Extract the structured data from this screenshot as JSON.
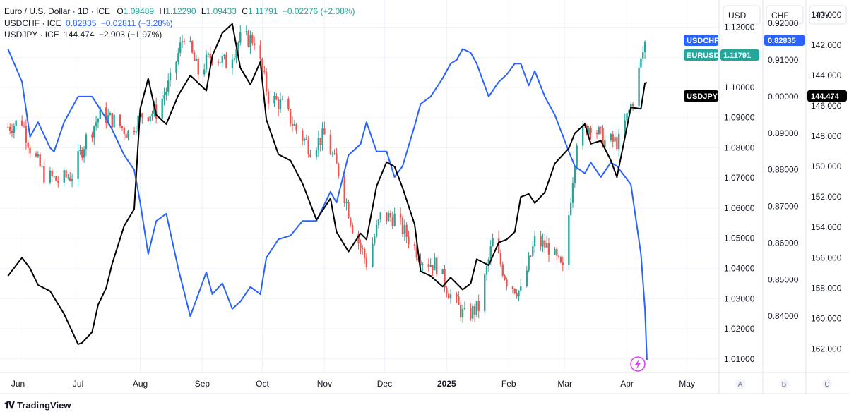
{
  "legend": {
    "eurusd": {
      "name": "Euro / U.S. Dollar · 1D · ICE",
      "o_label": "O",
      "o": "1.09489",
      "h_label": "H",
      "h": "1.12290",
      "l_label": "L",
      "l": "1.09433",
      "c_label": "C",
      "c": "1.11791",
      "chg": "+0.02276 (+2.08%)"
    },
    "usdchf": {
      "name": "USDCHF · ICE",
      "last": "0.82835",
      "chg": "−0.02811 (−3.28%)"
    },
    "usdjpy": {
      "name": "USDJPY · ICE",
      "last": "144.474",
      "chg": "−2.903 (−1.97%)"
    }
  },
  "axes": {
    "usd": {
      "header": "USD",
      "ticks": [
        "1.12000",
        "1.11000",
        "1.10000",
        "1.09000",
        "1.08000",
        "1.07000",
        "1.06000",
        "1.05000",
        "1.04000",
        "1.03000",
        "1.02000",
        "1.01000"
      ],
      "footer": "A"
    },
    "chf": {
      "header": "CHF",
      "ticks": [
        "0.84000",
        "0.85000",
        "0.86000",
        "0.87000",
        "0.88000",
        "0.89000",
        "0.90000",
        "0.91000",
        "0.92000"
      ],
      "footer": "B"
    },
    "jpy": {
      "header": "JPY",
      "ticks": [
        "140.000",
        "142.000",
        "144.000",
        "146.000",
        "148.000",
        "150.000",
        "152.000",
        "154.000",
        "156.000",
        "158.000",
        "160.000",
        "162.000"
      ],
      "footer": "C"
    }
  },
  "months": [
    "Jun",
    "Jul",
    "Aug",
    "Sep",
    "Oct",
    "Nov",
    "Dec",
    "2025",
    "Feb",
    "Mar",
    "Apr",
    "May"
  ],
  "price_labels": {
    "usdchf": {
      "name": "USDCHF",
      "value": "0.82835"
    },
    "eurusd": {
      "name": "EURUSD",
      "value": "1.11791"
    },
    "usdjpy": {
      "name": "USDJPY",
      "value": "144.474"
    }
  },
  "footer": {
    "brand": "TradingView"
  },
  "colors": {
    "up": "#26a69a",
    "down": "#ef5350",
    "usdchf": "#2962ff",
    "usdjpy": "#000000",
    "eurusd_label": "#26a69a",
    "grid": "#f0f3fa"
  },
  "chart_data": {
    "type": "line",
    "series": [
      {
        "name": "USDCHF",
        "scale": "CHF",
        "points": [
          [
            "2024-05-27",
            0.913
          ],
          [
            "2024-06-03",
            0.904
          ],
          [
            "2024-06-07",
            0.889
          ],
          [
            "2024-06-11",
            0.893
          ],
          [
            "2024-06-17",
            0.886
          ],
          [
            "2024-06-19",
            0.885
          ],
          [
            "2024-06-24",
            0.893
          ],
          [
            "2024-07-01",
            0.9
          ],
          [
            "2024-07-08",
            0.9
          ],
          [
            "2024-07-15",
            0.894
          ],
          [
            "2024-07-18",
            0.891
          ],
          [
            "2024-07-24",
            0.884
          ],
          [
            "2024-07-29",
            0.88
          ],
          [
            "2024-08-01",
            0.871
          ],
          [
            "2024-08-05",
            0.857
          ],
          [
            "2024-08-09",
            0.866
          ],
          [
            "2024-08-14",
            0.868
          ],
          [
            "2024-08-20",
            0.853
          ],
          [
            "2024-08-26",
            0.84
          ],
          [
            "2024-09-03",
            0.852
          ],
          [
            "2024-09-06",
            0.846
          ],
          [
            "2024-09-11",
            0.849
          ],
          [
            "2024-09-16",
            0.842
          ],
          [
            "2024-09-20",
            0.844
          ],
          [
            "2024-09-25",
            0.848
          ],
          [
            "2024-09-30",
            0.846
          ],
          [
            "2024-10-03",
            0.856
          ],
          [
            "2024-10-09",
            0.861
          ],
          [
            "2024-10-15",
            0.862
          ],
          [
            "2024-10-21",
            0.866
          ],
          [
            "2024-10-28",
            0.866
          ],
          [
            "2024-11-04",
            0.874
          ],
          [
            "2024-11-07",
            0.871
          ],
          [
            "2024-11-13",
            0.884
          ],
          [
            "2024-11-19",
            0.887
          ],
          [
            "2024-11-22",
            0.893
          ],
          [
            "2024-11-27",
            0.885
          ],
          [
            "2024-12-02",
            0.885
          ],
          [
            "2024-12-06",
            0.878
          ],
          [
            "2024-12-10",
            0.881
          ],
          [
            "2024-12-16",
            0.892
          ],
          [
            "2024-12-19",
            0.898
          ],
          [
            "2024-12-24",
            0.9
          ],
          [
            "2024-12-30",
            0.905
          ],
          [
            "2025-01-03",
            0.909
          ],
          [
            "2025-01-06",
            0.91
          ],
          [
            "2025-01-09",
            0.913
          ],
          [
            "2025-01-13",
            0.912
          ],
          [
            "2025-01-16",
            0.909
          ],
          [
            "2025-01-22",
            0.9
          ],
          [
            "2025-01-27",
            0.904
          ],
          [
            "2025-01-31",
            0.906
          ],
          [
            "2025-02-04",
            0.909
          ],
          [
            "2025-02-07",
            0.909
          ],
          [
            "2025-02-11",
            0.903
          ],
          [
            "2025-02-14",
            0.907
          ],
          [
            "2025-02-19",
            0.9
          ],
          [
            "2025-02-24",
            0.895
          ],
          [
            "2025-03-03",
            0.885
          ],
          [
            "2025-03-06",
            0.881
          ],
          [
            "2025-03-11",
            0.879
          ],
          [
            "2025-03-14",
            0.882
          ],
          [
            "2025-03-19",
            0.878
          ],
          [
            "2025-03-24",
            0.882
          ],
          [
            "2025-03-27",
            0.881
          ],
          [
            "2025-04-03",
            0.876
          ],
          [
            "2025-04-08",
            0.857
          ],
          [
            "2025-04-10",
            0.842
          ],
          [
            "2025-04-11",
            0.828
          ]
        ]
      },
      {
        "name": "USDJPY",
        "scale": "JPY",
        "points": [
          [
            "2024-05-27",
            157.2
          ],
          [
            "2024-06-03",
            156.0
          ],
          [
            "2024-06-07",
            156.7
          ],
          [
            "2024-06-11",
            157.8
          ],
          [
            "2024-06-17",
            158.2
          ],
          [
            "2024-06-24",
            159.7
          ],
          [
            "2024-07-01",
            161.7
          ],
          [
            "2024-07-03",
            161.6
          ],
          [
            "2024-07-08",
            160.9
          ],
          [
            "2024-07-11",
            159.1
          ],
          [
            "2024-07-15",
            158.0
          ],
          [
            "2024-07-18",
            156.4
          ],
          [
            "2024-07-24",
            153.9
          ],
          [
            "2024-07-29",
            152.8
          ],
          [
            "2024-08-01",
            146.2
          ],
          [
            "2024-08-05",
            144.2
          ],
          [
            "2024-08-09",
            146.6
          ],
          [
            "2024-08-14",
            147.2
          ],
          [
            "2024-08-20",
            145.3
          ],
          [
            "2024-08-26",
            144.0
          ],
          [
            "2024-09-03",
            145.0
          ],
          [
            "2024-09-06",
            142.7
          ],
          [
            "2024-09-11",
            141.2
          ],
          [
            "2024-09-16",
            140.6
          ],
          [
            "2024-09-20",
            143.5
          ],
          [
            "2024-09-25",
            144.6
          ],
          [
            "2024-09-30",
            143.1
          ],
          [
            "2024-10-03",
            146.9
          ],
          [
            "2024-10-09",
            149.2
          ],
          [
            "2024-10-15",
            149.6
          ],
          [
            "2024-10-21",
            151.1
          ],
          [
            "2024-10-28",
            153.5
          ],
          [
            "2024-11-04",
            152.1
          ],
          [
            "2024-11-07",
            154.3
          ],
          [
            "2024-11-13",
            155.6
          ],
          [
            "2024-11-19",
            154.4
          ],
          [
            "2024-11-22",
            154.8
          ],
          [
            "2024-11-27",
            151.3
          ],
          [
            "2024-12-02",
            149.7
          ],
          [
            "2024-12-06",
            150.0
          ],
          [
            "2024-12-10",
            151.4
          ],
          [
            "2024-12-16",
            153.8
          ],
          [
            "2024-12-19",
            156.9
          ],
          [
            "2024-12-24",
            157.2
          ],
          [
            "2024-12-30",
            157.9
          ],
          [
            "2025-01-03",
            157.3
          ],
          [
            "2025-01-09",
            158.1
          ],
          [
            "2025-01-13",
            157.7
          ],
          [
            "2025-01-16",
            156.1
          ],
          [
            "2025-01-22",
            156.5
          ],
          [
            "2025-01-27",
            155.0
          ],
          [
            "2025-01-31",
            154.8
          ],
          [
            "2025-02-04",
            154.3
          ],
          [
            "2025-02-07",
            152.0
          ],
          [
            "2025-02-11",
            151.8
          ],
          [
            "2025-02-14",
            152.4
          ],
          [
            "2025-02-19",
            151.7
          ],
          [
            "2025-02-24",
            149.8
          ],
          [
            "2025-03-03",
            148.8
          ],
          [
            "2025-03-06",
            147.8
          ],
          [
            "2025-03-11",
            147.2
          ],
          [
            "2025-03-14",
            148.5
          ],
          [
            "2025-03-19",
            148.3
          ],
          [
            "2025-03-24",
            149.6
          ],
          [
            "2025-03-27",
            150.7
          ],
          [
            "2025-04-03",
            146.1
          ],
          [
            "2025-04-08",
            146.2
          ],
          [
            "2025-04-10",
            144.5
          ],
          [
            "2025-04-11",
            144.474
          ]
        ]
      },
      {
        "name": "EURUSD",
        "scale": "USD",
        "type": "candlestick",
        "points": [
          [
            "2024-05-27",
            1.087
          ],
          [
            "2024-06-03",
            1.089
          ],
          [
            "2024-06-07",
            1.08
          ],
          [
            "2024-06-14",
            1.071
          ],
          [
            "2024-06-21",
            1.069
          ],
          [
            "2024-06-28",
            1.071
          ],
          [
            "2024-07-05",
            1.083
          ],
          [
            "2024-07-12",
            1.091
          ],
          [
            "2024-07-19",
            1.089
          ],
          [
            "2024-07-26",
            1.085
          ],
          [
            "2024-08-02",
            1.091
          ],
          [
            "2024-08-09",
            1.092
          ],
          [
            "2024-08-16",
            1.102
          ],
          [
            "2024-08-23",
            1.118
          ],
          [
            "2024-08-30",
            1.105
          ],
          [
            "2024-09-06",
            1.111
          ],
          [
            "2024-09-13",
            1.108
          ],
          [
            "2024-09-20",
            1.116
          ],
          [
            "2024-09-27",
            1.116
          ],
          [
            "2024-10-04",
            1.097
          ],
          [
            "2024-10-11",
            1.094
          ],
          [
            "2024-10-18",
            1.086
          ],
          [
            "2024-10-25",
            1.08
          ],
          [
            "2024-11-01",
            1.084
          ],
          [
            "2024-11-08",
            1.072
          ],
          [
            "2024-11-15",
            1.054
          ],
          [
            "2024-11-22",
            1.042
          ],
          [
            "2024-11-29",
            1.057
          ],
          [
            "2024-12-06",
            1.057
          ],
          [
            "2024-12-13",
            1.05
          ],
          [
            "2024-12-20",
            1.043
          ],
          [
            "2024-12-27",
            1.041
          ],
          [
            "2025-01-03",
            1.031
          ],
          [
            "2025-01-10",
            1.024
          ],
          [
            "2025-01-17",
            1.027
          ],
          [
            "2025-01-24",
            1.049
          ],
          [
            "2025-01-31",
            1.036
          ],
          [
            "2025-02-07",
            1.032
          ],
          [
            "2025-02-14",
            1.049
          ],
          [
            "2025-02-21",
            1.047
          ],
          [
            "2025-02-28",
            1.039
          ],
          [
            "2025-03-07",
            1.083
          ],
          [
            "2025-03-14",
            1.088
          ],
          [
            "2025-03-21",
            1.082
          ],
          [
            "2025-03-28",
            1.082
          ],
          [
            "2025-04-04",
            1.096
          ],
          [
            "2025-04-11",
            1.11791
          ]
        ]
      }
    ],
    "x_range": [
      "2024-05-23",
      "2025-05-17"
    ],
    "x_ticks": [
      [
        "Jun",
        "2024-06-01"
      ],
      [
        "Jul",
        "2024-07-01"
      ],
      [
        "Aug",
        "2024-08-01"
      ],
      [
        "Sep",
        "2024-09-01"
      ],
      [
        "Oct",
        "2024-10-01"
      ],
      [
        "Nov",
        "2024-11-01"
      ],
      [
        "Dec",
        "2024-12-01"
      ],
      [
        "2025",
        "2025-01-01"
      ],
      [
        "Feb",
        "2025-02-01"
      ],
      [
        "Mar",
        "2025-03-01"
      ],
      [
        "Apr",
        "2025-04-01"
      ],
      [
        "May",
        "2025-05-01"
      ]
    ],
    "y_scales": {
      "USD": {
        "range": [
          1.0055,
          1.129
        ]
      },
      "CHF": {
        "range": [
          0.82462,
          0.92638
        ]
      },
      "JPY": {
        "range": [
          139.03,
          163.56
        ],
        "inverted": true
      }
    },
    "grid": true,
    "legend_position": "top-left"
  }
}
